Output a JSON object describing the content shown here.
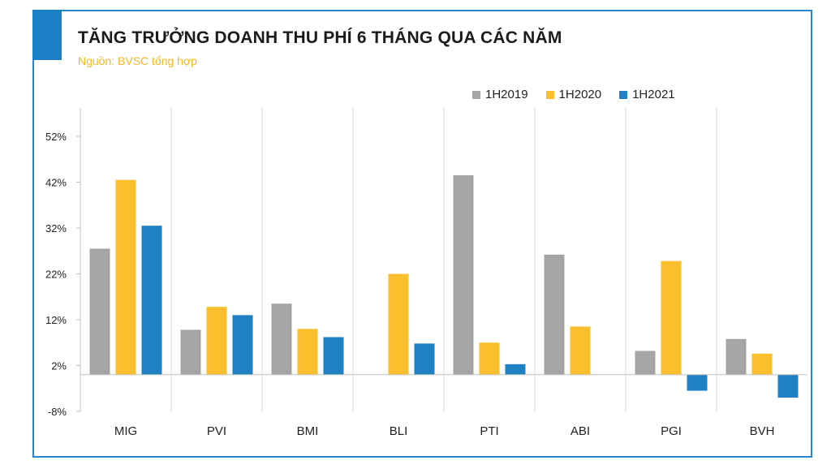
{
  "colors": {
    "accent": "#1a7fc4",
    "frame": "#2a86c8",
    "source": "#f5b625"
  },
  "header": {
    "title": "TĂNG TRƯỞNG DOANH THU PHÍ 6 THÁNG QUA CÁC NĂM",
    "source": "Nguồn: BVSC tổng hợp"
  },
  "chart_data": {
    "type": "bar",
    "title": "TĂNG TRƯỞNG DOANH THU PHÍ 6 THÁNG QUA CÁC NĂM",
    "xlabel": "",
    "ylabel": "",
    "categories": [
      "MIG",
      "PVI",
      "BMI",
      "BLI",
      "PTI",
      "ABI",
      "PGI",
      "BVH"
    ],
    "series": [
      {
        "name": "1H2019",
        "color": "#a5a5a5",
        "values": [
          27.5,
          9.8,
          15.5,
          null,
          43.5,
          26.2,
          5.2,
          7.8
        ]
      },
      {
        "name": "1H2020",
        "color": "#fbbf2e",
        "values": [
          42.5,
          14.8,
          10.0,
          22.0,
          7.0,
          10.5,
          24.8,
          4.6
        ]
      },
      {
        "name": "1H2021",
        "color": "#1f80c4",
        "values": [
          32.5,
          13.0,
          8.2,
          6.8,
          2.3,
          null,
          -3.5,
          -5.0
        ]
      }
    ],
    "yticks": [
      -8,
      2,
      12,
      22,
      32,
      42,
      52
    ],
    "ytick_labels": [
      "-8%",
      "2%",
      "12%",
      "22%",
      "32%",
      "42%",
      "52%"
    ],
    "ylim": [
      -8,
      57
    ],
    "legend_position": "top-right",
    "grid": "vertical category separators"
  }
}
